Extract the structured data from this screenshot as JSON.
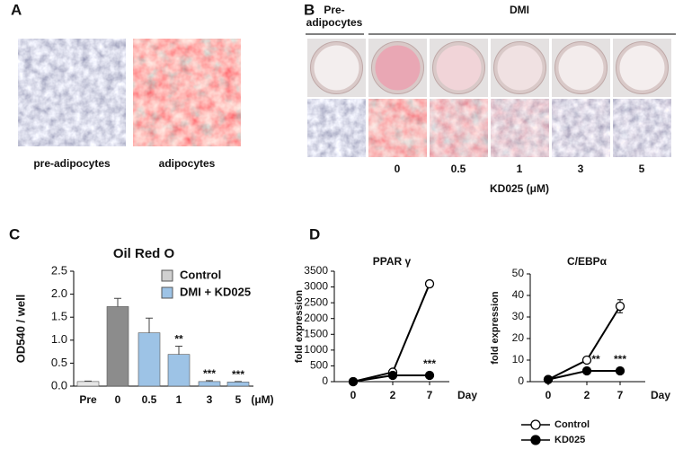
{
  "panels": [
    "A",
    "B",
    "C",
    "D"
  ],
  "panel_a": {
    "captions": [
      "pre-adipocytes",
      "adipocytes"
    ]
  },
  "panel_b": {
    "group_labels": [
      [
        "Pre-",
        "adipocytes"
      ],
      "DMI"
    ],
    "doses": [
      "0",
      "0.5",
      "1",
      "3",
      "5"
    ],
    "dose_axis_label": "KD025 (μM)"
  },
  "chart_data": [
    {
      "type": "bar",
      "title": "Oil Red O",
      "y_label": "OD540 / well",
      "x_unit": "(μM)",
      "categories": [
        "Pre",
        "0",
        "0.5",
        "1",
        "3",
        "5"
      ],
      "values": [
        0.1,
        1.73,
        1.16,
        0.69,
        0.1,
        0.09
      ],
      "errors": [
        0.01,
        0.18,
        0.32,
        0.18,
        0.02,
        0.01
      ],
      "colors": [
        "#e6e6e6",
        "#8c8c8c",
        "#9dc3e6",
        "#9dc3e6",
        "#9dc3e6",
        "#9dc3e6"
      ],
      "annotations": [
        null,
        null,
        null,
        "**",
        "***",
        "***"
      ],
      "legend": [
        {
          "name": "Control",
          "color": "#d0d0d0"
        },
        {
          "name": "DMI + KD025",
          "color": "#9dc3e6"
        }
      ],
      "ylim": [
        0,
        2.5
      ],
      "yticks": [
        {
          "value": 0,
          "label": "0.0"
        },
        0.5,
        {
          "value": 1,
          "label": "1.0"
        },
        1.5,
        {
          "value": 2,
          "label": "2.0"
        },
        2.5
      ]
    },
    {
      "type": "line",
      "title": "PPAR γ",
      "y_label": "fold expression",
      "x_label": "Day",
      "categories": [
        "0",
        "2",
        "7"
      ],
      "series": [
        {
          "name": "Control",
          "fill": "#ffffff",
          "values": [
            1,
            300,
            3100
          ],
          "errors": [
            5,
            40,
            60
          ]
        },
        {
          "name": "KD025",
          "fill": "#000000",
          "values": [
            1,
            200,
            200
          ],
          "errors": [
            5,
            20,
            20
          ]
        }
      ],
      "annotations": [
        null,
        null,
        "***"
      ],
      "ylim": [
        0,
        3500
      ],
      "yticks": [
        0,
        500,
        1000,
        1500,
        2000,
        2500,
        3000,
        3500
      ]
    },
    {
      "type": "line",
      "title": "C/EBPα",
      "y_label": "fold expression",
      "x_label": "Day",
      "categories": [
        "0",
        "2",
        "7"
      ],
      "series": [
        {
          "fill": "#ffffff",
          "values": [
            1,
            10,
            35
          ],
          "errors": [
            0.3,
            0.8,
            3
          ]
        },
        {
          "fill": "#000000",
          "values": [
            1,
            5,
            5
          ],
          "errors": [
            0.3,
            0.5,
            0.5
          ]
        }
      ],
      "annotations": [
        null,
        "**",
        "***"
      ],
      "ylim": [
        0,
        50
      ],
      "yticks": [
        0,
        10,
        20,
        30,
        40,
        50
      ]
    }
  ]
}
